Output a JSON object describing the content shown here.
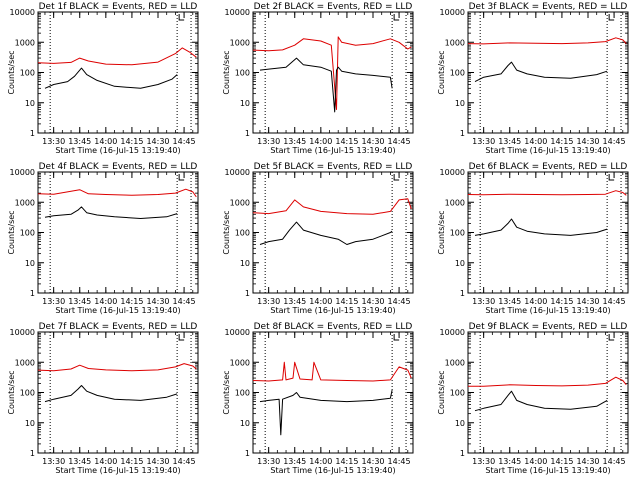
{
  "figure": {
    "xlabel": "Start Time (16-Jul-15 13:19:40)",
    "ylabel": "Counts/sec",
    "time_ticks": [
      "13:30",
      "13:45",
      "14:00",
      "14:15",
      "14:30",
      "14:45"
    ],
    "y_ticks": [
      "1",
      "10",
      "100",
      "1000",
      "10000"
    ]
  },
  "chart_data": [
    {
      "type": "line",
      "title": "Det 1f BLACK = Events, RED = LLD",
      "xlabel": "Start Time (16-Jul-15 13:19:40)",
      "ylabel": "Counts/sec",
      "ylim": [
        1,
        10000
      ],
      "ylog": true,
      "xlim": [
        "13:21",
        "14:53"
      ],
      "markers": [
        "13:28",
        "14:41",
        "14:49"
      ],
      "series": [
        {
          "name": "RED = LLD",
          "color": "#dd0000",
          "x": [
            "13:21",
            "13:30",
            "13:40",
            "13:45",
            "13:50",
            "14:00",
            "14:15",
            "14:30",
            "14:40",
            "14:44",
            "14:48",
            "14:52"
          ],
          "y": [
            210,
            200,
            215,
            300,
            240,
            190,
            180,
            220,
            420,
            650,
            480,
            320
          ]
        },
        {
          "name": "BLACK = Events",
          "color": "#000000",
          "x": [
            "13:25",
            "13:30",
            "13:38",
            "13:42",
            "13:46",
            "13:49",
            "13:55",
            "14:05",
            "14:20",
            "14:30",
            "14:38",
            "14:41"
          ],
          "y": [
            30,
            40,
            50,
            75,
            140,
            85,
            55,
            35,
            30,
            40,
            60,
            85
          ]
        }
      ]
    },
    {
      "type": "line",
      "title": "Det 2f BLACK = Events, RED = LLD",
      "xlabel": "Start Time (16-Jul-15 13:19:40)",
      "ylabel": "Counts/sec",
      "ylim": [
        1,
        10000
      ],
      "ylog": true,
      "xlim": [
        "13:21",
        "14:53"
      ],
      "markers": [
        "13:28",
        "14:41",
        "14:49"
      ],
      "series": [
        {
          "name": "RED = LLD",
          "color": "#dd0000",
          "x": [
            "13:21",
            "13:30",
            "13:38",
            "13:45",
            "13:50",
            "14:00",
            "14:06",
            "14:09",
            "14:10",
            "14:12",
            "14:20",
            "14:30",
            "14:40",
            "14:45",
            "14:50",
            "14:52"
          ],
          "y": [
            550,
            520,
            560,
            800,
            1300,
            1100,
            800,
            6,
            1500,
            1000,
            800,
            900,
            1300,
            1000,
            600,
            700
          ]
        },
        {
          "name": "BLACK = Events",
          "color": "#000000",
          "x": [
            "13:25",
            "13:30",
            "13:40",
            "13:46",
            "13:50",
            "14:00",
            "14:06",
            "14:08",
            "14:09",
            "14:10",
            "14:12",
            "14:20",
            "14:30",
            "14:40",
            "14:41"
          ],
          "y": [
            120,
            130,
            150,
            300,
            180,
            150,
            110,
            5,
            120,
            150,
            110,
            90,
            80,
            70,
            30
          ]
        }
      ]
    },
    {
      "type": "line",
      "title": "Det 3f BLACK = Events, RED = LLD",
      "xlabel": "Start Time (16-Jul-15 13:19:40)",
      "ylabel": "Counts/sec",
      "ylim": [
        1,
        10000
      ],
      "ylog": true,
      "xlim": [
        "13:21",
        "14:53"
      ],
      "markers": [
        "13:28",
        "14:41",
        "14:49"
      ],
      "series": [
        {
          "name": "RED = LLD",
          "color": "#dd0000",
          "x": [
            "13:21",
            "13:30",
            "13:45",
            "14:00",
            "14:15",
            "14:30",
            "14:40",
            "14:46",
            "14:50",
            "14:52"
          ],
          "y": [
            900,
            880,
            950,
            920,
            900,
            950,
            1050,
            1400,
            1200,
            900
          ]
        },
        {
          "name": "BLACK = Events",
          "color": "#000000",
          "x": [
            "13:25",
            "13:30",
            "13:40",
            "13:44",
            "13:46",
            "13:49",
            "13:55",
            "14:05",
            "14:20",
            "14:35",
            "14:41"
          ],
          "y": [
            50,
            70,
            90,
            170,
            220,
            120,
            90,
            70,
            65,
            85,
            110
          ]
        }
      ]
    },
    {
      "type": "line",
      "title": "Det 4f BLACK = Events, RED = LLD",
      "xlabel": "Start Time (16-Jul-15 13:19:40)",
      "ylabel": "Counts/sec",
      "ylim": [
        1,
        10000
      ],
      "ylog": true,
      "xlim": [
        "13:21",
        "14:53"
      ],
      "markers": [
        "13:28",
        "14:41",
        "14:49"
      ],
      "series": [
        {
          "name": "RED = LLD",
          "color": "#dd0000",
          "x": [
            "13:21",
            "13:30",
            "13:45",
            "13:50",
            "14:00",
            "14:15",
            "14:30",
            "14:40",
            "14:46",
            "14:50",
            "14:52"
          ],
          "y": [
            1900,
            1850,
            2600,
            1900,
            1800,
            1700,
            1800,
            2000,
            2700,
            2200,
            1500
          ]
        },
        {
          "name": "BLACK = Events",
          "color": "#000000",
          "x": [
            "13:25",
            "13:30",
            "13:40",
            "13:44",
            "13:46",
            "13:49",
            "13:55",
            "14:05",
            "14:20",
            "14:35",
            "14:41"
          ],
          "y": [
            320,
            360,
            400,
            550,
            700,
            450,
            380,
            330,
            290,
            330,
            420
          ]
        }
      ]
    },
    {
      "type": "line",
      "title": "Det 5f BLACK = Events, RED = LLD",
      "xlabel": "Start Time (16-Jul-15 13:19:40)",
      "ylabel": "Counts/sec",
      "ylim": [
        1,
        10000
      ],
      "ylog": true,
      "xlim": [
        "13:21",
        "14:53"
      ],
      "markers": [
        "13:28",
        "14:41",
        "14:49"
      ],
      "series": [
        {
          "name": "RED = LLD",
          "color": "#dd0000",
          "x": [
            "13:21",
            "13:30",
            "13:40",
            "13:45",
            "13:50",
            "14:00",
            "14:15",
            "14:30",
            "14:40",
            "14:45",
            "14:50",
            "14:52"
          ],
          "y": [
            450,
            420,
            520,
            1200,
            700,
            500,
            420,
            400,
            500,
            1200,
            1300,
            600
          ]
        },
        {
          "name": "BLACK = Events",
          "color": "#000000",
          "x": [
            "13:25",
            "13:30",
            "13:38",
            "13:42",
            "13:46",
            "13:50",
            "14:00",
            "14:10",
            "14:15",
            "14:20",
            "14:30",
            "14:40",
            "14:41"
          ],
          "y": [
            40,
            50,
            60,
            120,
            220,
            120,
            80,
            60,
            40,
            50,
            60,
            100,
            110
          ]
        }
      ]
    },
    {
      "type": "line",
      "title": "Det 6f BLACK = Events, RED = LLD",
      "xlabel": "Start Time (16-Jul-15 13:19:40)",
      "ylabel": "Counts/sec",
      "ylim": [
        1,
        10000
      ],
      "ylog": true,
      "xlim": [
        "13:21",
        "14:53"
      ],
      "markers": [
        "13:28",
        "14:41",
        "14:49"
      ],
      "series": [
        {
          "name": "RED = LLD",
          "color": "#dd0000",
          "x": [
            "13:21",
            "13:30",
            "13:45",
            "14:00",
            "14:15",
            "14:30",
            "14:40",
            "14:46",
            "14:50",
            "14:52"
          ],
          "y": [
            1800,
            1780,
            1850,
            1800,
            1780,
            1800,
            1850,
            2400,
            2100,
            1700
          ]
        },
        {
          "name": "BLACK = Events",
          "color": "#000000",
          "x": [
            "13:25",
            "13:30",
            "13:40",
            "13:44",
            "13:46",
            "13:49",
            "13:55",
            "14:05",
            "14:20",
            "14:35",
            "14:41"
          ],
          "y": [
            80,
            90,
            120,
            200,
            280,
            150,
            110,
            90,
            80,
            100,
            130
          ]
        }
      ]
    },
    {
      "type": "line",
      "title": "Det 7f BLACK = Events, RED = LLD",
      "xlabel": "Start Time (16-Jul-15 13:19:40)",
      "ylabel": "Counts/sec",
      "ylim": [
        1,
        10000
      ],
      "ylog": true,
      "xlim": [
        "13:21",
        "14:53"
      ],
      "markers": [
        "13:28",
        "14:41",
        "14:49"
      ],
      "series": [
        {
          "name": "RED = LLD",
          "color": "#dd0000",
          "x": [
            "13:21",
            "13:30",
            "13:40",
            "13:45",
            "13:50",
            "14:00",
            "14:15",
            "14:30",
            "14:40",
            "14:45",
            "14:50",
            "14:52"
          ],
          "y": [
            550,
            520,
            600,
            800,
            620,
            560,
            520,
            560,
            700,
            900,
            750,
            600
          ]
        },
        {
          "name": "BLACK = Events",
          "color": "#000000",
          "x": [
            "13:25",
            "13:30",
            "13:40",
            "13:44",
            "13:46",
            "13:49",
            "13:55",
            "14:05",
            "14:20",
            "14:35",
            "14:41"
          ],
          "y": [
            50,
            60,
            80,
            130,
            170,
            110,
            80,
            60,
            55,
            70,
            90
          ]
        }
      ]
    },
    {
      "type": "line",
      "title": "Det 8f BLACK = Events, RED = LLD",
      "xlabel": "Start Time (16-Jul-15 13:19:40)",
      "ylabel": "Counts/sec",
      "ylim": [
        1,
        10000
      ],
      "ylog": true,
      "xlim": [
        "13:21",
        "14:53"
      ],
      "markers": [
        "13:28",
        "14:41",
        "14:49"
      ],
      "series": [
        {
          "name": "RED = LLD",
          "color": "#dd0000",
          "x": [
            "13:21",
            "13:30",
            "13:38",
            "13:39",
            "13:40",
            "13:44",
            "13:45",
            "13:48",
            "13:55",
            "13:56",
            "14:00",
            "14:15",
            "14:30",
            "14:40",
            "14:45",
            "14:50",
            "14:52"
          ],
          "y": [
            250,
            240,
            260,
            1000,
            260,
            300,
            1000,
            280,
            260,
            1000,
            260,
            250,
            240,
            260,
            700,
            550,
            300
          ]
        },
        {
          "name": "BLACK = Events",
          "color": "#000000",
          "x": [
            "13:25",
            "13:30",
            "13:36",
            "13:37",
            "13:38",
            "13:44",
            "13:46",
            "13:48",
            "14:00",
            "14:15",
            "14:30",
            "14:40",
            "14:41"
          ],
          "y": [
            50,
            55,
            60,
            4,
            60,
            80,
            100,
            70,
            55,
            50,
            55,
            65,
            120
          ]
        }
      ]
    },
    {
      "type": "line",
      "title": "Det 9f BLACK = Events, RED = LLD",
      "xlabel": "Start Time (16-Jul-15 13:19:40)",
      "ylabel": "Counts/sec",
      "ylim": [
        1,
        10000
      ],
      "ylog": true,
      "xlim": [
        "13:21",
        "14:53"
      ],
      "markers": [
        "13:28",
        "14:41",
        "14:49"
      ],
      "series": [
        {
          "name": "RED = LLD",
          "color": "#dd0000",
          "x": [
            "13:21",
            "13:30",
            "13:45",
            "14:00",
            "14:15",
            "14:30",
            "14:40",
            "14:46",
            "14:50",
            "14:52"
          ],
          "y": [
            160,
            160,
            180,
            170,
            165,
            175,
            200,
            320,
            250,
            180
          ]
        },
        {
          "name": "BLACK = Events",
          "color": "#000000",
          "x": [
            "13:25",
            "13:30",
            "13:40",
            "13:44",
            "13:46",
            "13:49",
            "13:55",
            "14:05",
            "14:20",
            "14:35",
            "14:41"
          ],
          "y": [
            25,
            30,
            40,
            80,
            110,
            55,
            40,
            30,
            28,
            35,
            55
          ]
        }
      ]
    }
  ]
}
